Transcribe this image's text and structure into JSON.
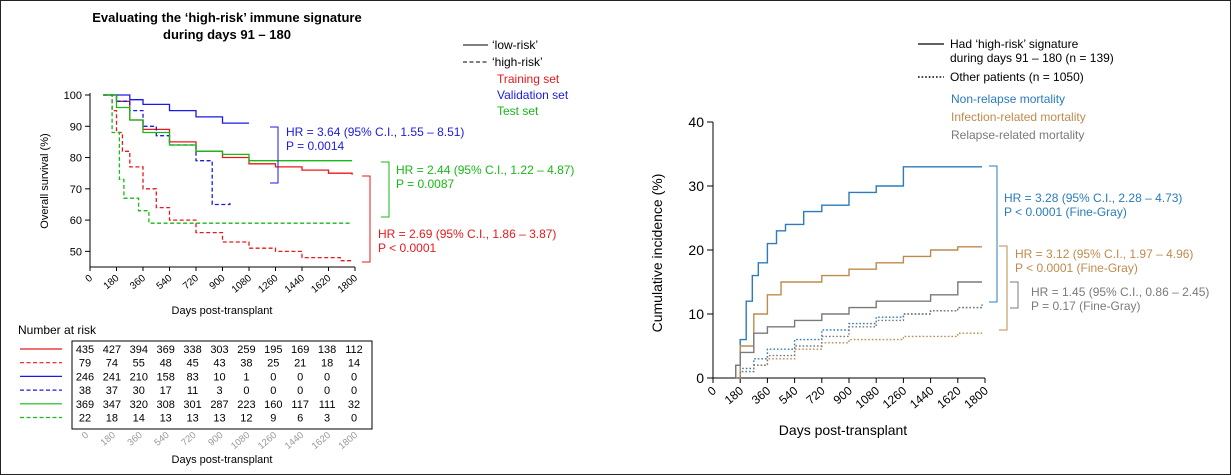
{
  "colors": {
    "training": "#e8191c",
    "validation": "#1a1ae6",
    "test": "#16b916",
    "nrm": "#2b7bbd",
    "infection": "#c08a4c",
    "relapse": "#7a7a7a",
    "axis": "#000000"
  },
  "chart_data": [
    {
      "type": "line",
      "panel": "left-survival",
      "title": "Evaluating the ‘high-risk’ immune signature",
      "subtitle": "during days 91 – 180",
      "xlabel": "Days post-transplant",
      "ylabel": "Overall survival (%)",
      "xticks": [
        0,
        180,
        360,
        540,
        720,
        900,
        1080,
        1260,
        1440,
        1620,
        1800
      ],
      "yticks": [
        50,
        60,
        70,
        80,
        90,
        100
      ],
      "xlim": [
        0,
        1800
      ],
      "ylim": [
        45,
        100
      ],
      "legend": {
        "style_labels": [
          "‘low-risk’",
          "‘high-risk’"
        ],
        "set_labels": [
          "Training set",
          "Validation set",
          "Test set"
        ]
      },
      "series": [
        {
          "set": "training",
          "risk": "low",
          "points": [
            [
              90,
              100
            ],
            [
              180,
              98
            ],
            [
              270,
              92
            ],
            [
              360,
              89
            ],
            [
              540,
              85
            ],
            [
              720,
              82
            ],
            [
              900,
              80
            ],
            [
              1080,
              78
            ],
            [
              1260,
              77
            ],
            [
              1440,
              76
            ],
            [
              1620,
              75
            ],
            [
              1780,
              74.5
            ]
          ]
        },
        {
          "set": "training",
          "risk": "high",
          "points": [
            [
              90,
              100
            ],
            [
              150,
              95
            ],
            [
              180,
              88
            ],
            [
              220,
              82
            ],
            [
              270,
              77
            ],
            [
              360,
              70
            ],
            [
              450,
              64
            ],
            [
              540,
              60
            ],
            [
              720,
              56
            ],
            [
              900,
              53
            ],
            [
              1080,
              51
            ],
            [
              1260,
              50
            ],
            [
              1440,
              48
            ],
            [
              1620,
              48
            ],
            [
              1700,
              47
            ],
            [
              1780,
              46.5
            ]
          ]
        },
        {
          "set": "validation",
          "risk": "low",
          "points": [
            [
              90,
              100
            ],
            [
              270,
              98.5
            ],
            [
              360,
              97
            ],
            [
              540,
              95
            ],
            [
              720,
              93
            ],
            [
              900,
              91
            ],
            [
              1080,
              91
            ]
          ]
        },
        {
          "set": "validation",
          "risk": "high",
          "points": [
            [
              90,
              100
            ],
            [
              180,
              98
            ],
            [
              270,
              95
            ],
            [
              360,
              90
            ],
            [
              450,
              87
            ],
            [
              540,
              84
            ],
            [
              720,
              79
            ],
            [
              800,
              79
            ],
            [
              830,
              65
            ],
            [
              900,
              65
            ],
            [
              950,
              65.5
            ]
          ]
        },
        {
          "set": "test",
          "risk": "low",
          "points": [
            [
              90,
              100
            ],
            [
              180,
              96
            ],
            [
              270,
              92
            ],
            [
              360,
              88
            ],
            [
              540,
              84
            ],
            [
              720,
              82
            ],
            [
              900,
              81
            ],
            [
              1080,
              79
            ],
            [
              1260,
              79
            ],
            [
              1440,
              79
            ],
            [
              1620,
              79
            ],
            [
              1780,
              79
            ]
          ]
        },
        {
          "set": "test",
          "risk": "high",
          "points": [
            [
              90,
              100
            ],
            [
              150,
              88
            ],
            [
              200,
              73
            ],
            [
              230,
              67
            ],
            [
              330,
              63
            ],
            [
              400,
              59
            ],
            [
              1080,
              59
            ],
            [
              1780,
              59
            ]
          ]
        }
      ],
      "annotations": [
        {
          "set": "validation",
          "line1": "HR = 3.64 (95% C.I., 1.55 – 8.51)",
          "line2": "P = 0.0014"
        },
        {
          "set": "test",
          "line1": "HR = 2.44 (95% C.I., 1.22 – 4.87)",
          "line2": "P = 0.0087"
        },
        {
          "set": "training",
          "line1": "HR = 2.69 (95% C.I., 1.86 – 3.87)",
          "line2": "P < 0.0001"
        }
      ]
    },
    {
      "type": "table",
      "panel": "number-at-risk",
      "title": "Number at risk",
      "xlabel": "Days post-transplant",
      "columns": [
        0,
        180,
        360,
        540,
        720,
        900,
        1080,
        1260,
        1440,
        1620,
        1800
      ],
      "rows": [
        {
          "set": "training",
          "risk": "low",
          "values": [
            435,
            427,
            394,
            369,
            338,
            303,
            259,
            195,
            169,
            138,
            112
          ]
        },
        {
          "set": "training",
          "risk": "high",
          "values": [
            79,
            74,
            55,
            48,
            45,
            43,
            38,
            25,
            21,
            18,
            14
          ]
        },
        {
          "set": "validation",
          "risk": "low",
          "values": [
            246,
            241,
            210,
            158,
            83,
            10,
            1,
            0,
            0,
            0,
            0
          ]
        },
        {
          "set": "validation",
          "risk": "high",
          "values": [
            38,
            37,
            30,
            17,
            11,
            3,
            0,
            0,
            0,
            0,
            0
          ]
        },
        {
          "set": "test",
          "risk": "low",
          "values": [
            369,
            347,
            320,
            308,
            301,
            287,
            223,
            160,
            117,
            111,
            32
          ]
        },
        {
          "set": "test",
          "risk": "high",
          "values": [
            22,
            18,
            14,
            13,
            13,
            13,
            12,
            9,
            6,
            3,
            0
          ]
        }
      ]
    },
    {
      "type": "line",
      "panel": "right-cumulative-incidence",
      "xlabel": "Days post-transplant",
      "ylabel": "Cumulative incidence (%)",
      "xticks": [
        0,
        180,
        360,
        540,
        720,
        900,
        1080,
        1260,
        1440,
        1620,
        1800
      ],
      "yticks": [
        0,
        10,
        20,
        30,
        40
      ],
      "xlim": [
        0,
        1800
      ],
      "ylim": [
        0,
        40
      ],
      "legend": {
        "style_labels": [
          "Had ‘high-risk’ signature",
          "during days 91 – 180 (n = 139)",
          "Other patients (n = 1050)"
        ],
        "outcome_labels": [
          "Non-relapse mortality",
          "Infection-related mortality",
          "Relapse-related mortality"
        ]
      },
      "series": [
        {
          "outcome": "nrm",
          "group": "high",
          "points": [
            [
              90,
              0
            ],
            [
              150,
              2
            ],
            [
              180,
              6
            ],
            [
              220,
              12
            ],
            [
              260,
              16
            ],
            [
              300,
              18
            ],
            [
              360,
              21
            ],
            [
              420,
              23
            ],
            [
              480,
              24
            ],
            [
              600,
              26
            ],
            [
              720,
              27
            ],
            [
              900,
              29
            ],
            [
              1080,
              30
            ],
            [
              1260,
              33
            ],
            [
              1780,
              33
            ]
          ]
        },
        {
          "outcome": "nrm",
          "group": "other",
          "points": [
            [
              90,
              0
            ],
            [
              180,
              1.5
            ],
            [
              270,
              3
            ],
            [
              360,
              4.5
            ],
            [
              540,
              6
            ],
            [
              720,
              7.5
            ],
            [
              900,
              8.5
            ],
            [
              1080,
              9.5
            ],
            [
              1260,
              10
            ],
            [
              1440,
              10.5
            ],
            [
              1620,
              11
            ],
            [
              1780,
              11.5
            ]
          ]
        },
        {
          "outcome": "infection",
          "group": "high",
          "points": [
            [
              90,
              0
            ],
            [
              180,
              5
            ],
            [
              270,
              10
            ],
            [
              360,
              13
            ],
            [
              450,
              15
            ],
            [
              720,
              16
            ],
            [
              900,
              17
            ],
            [
              1080,
              18
            ],
            [
              1260,
              19
            ],
            [
              1440,
              20
            ],
            [
              1620,
              20.5
            ],
            [
              1780,
              20.5
            ]
          ]
        },
        {
          "outcome": "infection",
          "group": "other",
          "points": [
            [
              90,
              0
            ],
            [
              180,
              1
            ],
            [
              270,
              2
            ],
            [
              360,
              3
            ],
            [
              540,
              4.5
            ],
            [
              720,
              5.5
            ],
            [
              900,
              6
            ],
            [
              1260,
              6.5
            ],
            [
              1620,
              7
            ],
            [
              1780,
              7
            ]
          ]
        },
        {
          "outcome": "relapse",
          "group": "high",
          "points": [
            [
              90,
              0
            ],
            [
              150,
              2
            ],
            [
              180,
              4
            ],
            [
              270,
              7
            ],
            [
              360,
              8
            ],
            [
              540,
              9
            ],
            [
              720,
              10
            ],
            [
              900,
              11
            ],
            [
              1080,
              12
            ],
            [
              1260,
              12
            ],
            [
              1440,
              13
            ],
            [
              1620,
              15
            ],
            [
              1780,
              15
            ]
          ]
        },
        {
          "outcome": "relapse",
          "group": "other",
          "points": [
            [
              90,
              0
            ],
            [
              180,
              1
            ],
            [
              270,
              2
            ],
            [
              360,
              3.5
            ],
            [
              540,
              5
            ],
            [
              720,
              6.5
            ],
            [
              900,
              8
            ],
            [
              1080,
              9
            ],
            [
              1260,
              10
            ],
            [
              1440,
              10.5
            ],
            [
              1620,
              11
            ],
            [
              1780,
              11
            ]
          ]
        }
      ],
      "annotations": [
        {
          "outcome": "nrm",
          "line1": "HR = 3.28 (95% C.I., 2.28 – 4.73)",
          "line2": "P < 0.0001 (Fine-Gray)"
        },
        {
          "outcome": "infection",
          "line1": "HR = 3.12 (95% C.I., 1.97 – 4.96)",
          "line2": "P < 0.0001 (Fine-Gray)"
        },
        {
          "outcome": "relapse",
          "line1": "HR = 1.45 (95% C.I., 0.86 – 2.45)",
          "line2": "P = 0.17 (Fine-Gray)"
        }
      ]
    }
  ]
}
